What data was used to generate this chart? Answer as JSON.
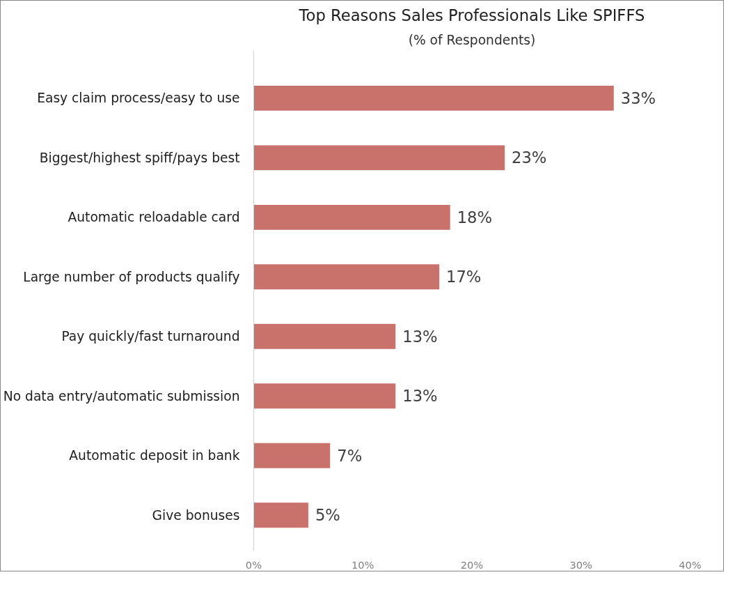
{
  "chart_data": {
    "type": "bar",
    "orientation": "horizontal",
    "title": "Top Reasons Sales Professionals Like SPIFFS",
    "subtitle": "(% of Respondents)",
    "categories": [
      "Easy claim process/easy to use",
      "Biggest/highest spiff/pays best",
      "Automatic reloadable card",
      "Large number of products qualify",
      "Pay quickly/fast turnaround",
      "No data entry/automatic submission",
      "Automatic deposit in bank",
      "Give bonuses"
    ],
    "values": [
      33,
      23,
      18,
      17,
      13,
      13,
      7,
      5
    ],
    "value_labels": [
      "33%",
      "23%",
      "18%",
      "17%",
      "13%",
      "13%",
      "7%",
      "5%"
    ],
    "color": "#c9716b",
    "xlim": [
      0,
      40
    ],
    "xticks": [
      {
        "value": 0,
        "label": "0%"
      },
      {
        "value": 10,
        "label": "10%"
      },
      {
        "value": 20,
        "label": "20%"
      },
      {
        "value": 30,
        "label": "30%"
      },
      {
        "value": 40,
        "label": "40%"
      }
    ],
    "grid": false
  }
}
